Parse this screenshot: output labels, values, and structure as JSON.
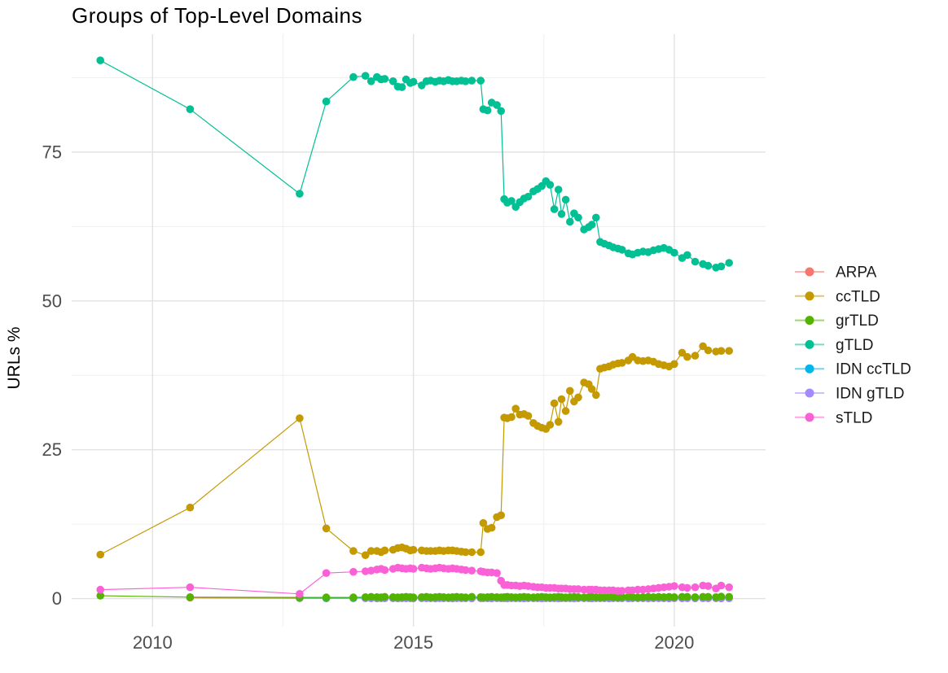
{
  "chart_data": {
    "type": "line",
    "title": "Groups of Top-Level Domains",
    "xlabel": "",
    "ylabel": "URLs %",
    "grid": true,
    "legend_position": "right",
    "x_axis": {
      "domain": [
        2008.45,
        2021.75
      ],
      "ticks": [
        2010,
        2015,
        2020
      ],
      "tick_labels": [
        "2010",
        "2015",
        "2020"
      ],
      "minor_ticks": [
        2012.5,
        2017.5
      ]
    },
    "y_axis": {
      "domain": [
        -4.7,
        94.8
      ],
      "ticks": [
        0,
        25,
        50,
        75
      ],
      "tick_labels": [
        "0",
        "25",
        "50",
        "75"
      ],
      "minor_ticks": [
        12.5,
        37.5,
        62.5,
        87.5
      ]
    },
    "draw_order": [
      "ARPA",
      "IDN ccTLD",
      "IDN gTLD",
      "grTLD",
      "gTLD",
      "ccTLD",
      "sTLD"
    ],
    "series": [
      {
        "name": "ARPA",
        "color": "#F8766D",
        "x": [
          2010.72,
          2012.82,
          2013.33,
          2013.85
        ],
        "y": [
          0.15,
          0.07,
          0.06,
          0.05
        ]
      },
      {
        "name": "ccTLD",
        "color": "#C49A00",
        "x": [
          2009.0,
          2010.72,
          2012.82,
          2013.33,
          2013.85,
          2014.08,
          2014.19,
          2014.3,
          2014.38,
          2014.45,
          2014.61,
          2014.7,
          2014.78,
          2014.86,
          2014.94,
          2015.0,
          2015.16,
          2015.25,
          2015.33,
          2015.42,
          2015.5,
          2015.58,
          2015.67,
          2015.75,
          2015.83,
          2015.92,
          2016.0,
          2016.12,
          2016.29,
          2016.34,
          2016.42,
          2016.5,
          2016.6,
          2016.68,
          2016.74,
          2016.8,
          2016.88,
          2016.96,
          2017.04,
          2017.12,
          2017.2,
          2017.3,
          2017.38,
          2017.46,
          2017.54,
          2017.62,
          2017.7,
          2017.78,
          2017.84,
          2017.92,
          2018.0,
          2018.08,
          2018.16,
          2018.27,
          2018.36,
          2018.42,
          2018.5,
          2018.58,
          2018.66,
          2018.75,
          2018.83,
          2018.92,
          2019.0,
          2019.12,
          2019.2,
          2019.3,
          2019.4,
          2019.5,
          2019.6,
          2019.7,
          2019.8,
          2019.9,
          2020.0,
          2020.15,
          2020.25,
          2020.4,
          2020.55,
          2020.65,
          2020.8,
          2020.9,
          2021.05
        ],
        "y": [
          7.4,
          15.3,
          30.3,
          11.8,
          8.0,
          7.3,
          8.0,
          8.0,
          7.8,
          8.1,
          8.2,
          8.5,
          8.6,
          8.4,
          8.1,
          8.2,
          8.1,
          8.0,
          8.0,
          8.0,
          8.1,
          8.0,
          8.1,
          8.1,
          8.0,
          7.9,
          7.8,
          7.8,
          7.8,
          12.7,
          11.7,
          11.9,
          13.7,
          14.0,
          30.4,
          30.3,
          30.5,
          31.9,
          30.9,
          31.0,
          30.7,
          29.5,
          29.0,
          28.7,
          28.5,
          29.2,
          32.8,
          29.7,
          33.5,
          31.5,
          34.9,
          33.1,
          33.8,
          36.3,
          36.0,
          35.2,
          34.2,
          38.6,
          38.8,
          39.0,
          39.3,
          39.5,
          39.6,
          40.0,
          40.6,
          40.0,
          39.9,
          40.0,
          39.8,
          39.4,
          39.2,
          39.0,
          39.4,
          41.3,
          40.6,
          40.8,
          42.4,
          41.7,
          41.5,
          41.6,
          41.6
        ]
      },
      {
        "name": "grTLD",
        "color": "#53B400",
        "x": [
          2009.0,
          2010.72,
          2012.82,
          2013.33,
          2013.85,
          2014.08,
          2014.19,
          2014.3,
          2014.38,
          2014.45,
          2014.61,
          2014.7,
          2014.78,
          2014.86,
          2014.94,
          2015.0,
          2015.16,
          2015.25,
          2015.33,
          2015.42,
          2015.5,
          2015.58,
          2015.67,
          2015.75,
          2015.83,
          2015.92,
          2016.0,
          2016.12,
          2016.29,
          2016.34,
          2016.42,
          2016.5,
          2016.6,
          2016.68,
          2016.74,
          2016.8,
          2016.88,
          2016.96,
          2017.04,
          2017.12,
          2017.2,
          2017.3,
          2017.38,
          2017.46,
          2017.54,
          2017.62,
          2017.7,
          2017.78,
          2017.84,
          2017.92,
          2018.0,
          2018.08,
          2018.16,
          2018.27,
          2018.36,
          2018.42,
          2018.5,
          2018.58,
          2018.66,
          2018.75,
          2018.83,
          2018.92,
          2019.0,
          2019.12,
          2019.2,
          2019.3,
          2019.4,
          2019.5,
          2019.6,
          2019.7,
          2019.8,
          2019.9,
          2020.0,
          2020.15,
          2020.25,
          2020.4,
          2020.55,
          2020.65,
          2020.8,
          2020.9,
          2021.05
        ],
        "y": [
          0.5,
          0.25,
          0.2,
          0.2,
          0.2,
          0.25,
          0.3,
          0.25,
          0.2,
          0.3,
          0.25,
          0.2,
          0.25,
          0.3,
          0.25,
          0.2,
          0.25,
          0.3,
          0.2,
          0.25,
          0.3,
          0.25,
          0.2,
          0.25,
          0.3,
          0.25,
          0.2,
          0.3,
          0.25,
          0.2,
          0.25,
          0.3,
          0.25,
          0.2,
          0.25,
          0.3,
          0.25,
          0.2,
          0.25,
          0.3,
          0.25,
          0.2,
          0.25,
          0.3,
          0.25,
          0.2,
          0.25,
          0.3,
          0.25,
          0.2,
          0.25,
          0.3,
          0.25,
          0.2,
          0.25,
          0.3,
          0.25,
          0.2,
          0.25,
          0.3,
          0.25,
          0.2,
          0.25,
          0.3,
          0.25,
          0.2,
          0.25,
          0.3,
          0.25,
          0.3,
          0.25,
          0.3,
          0.25,
          0.3,
          0.3,
          0.25,
          0.3,
          0.3,
          0.25,
          0.35,
          0.3
        ]
      },
      {
        "name": "gTLD",
        "color": "#00C094",
        "x": [
          2009.0,
          2010.72,
          2012.82,
          2013.33,
          2013.85,
          2014.08,
          2014.19,
          2014.3,
          2014.38,
          2014.45,
          2014.61,
          2014.7,
          2014.78,
          2014.86,
          2014.94,
          2015.0,
          2015.16,
          2015.25,
          2015.33,
          2015.42,
          2015.5,
          2015.58,
          2015.67,
          2015.75,
          2015.83,
          2015.92,
          2016.0,
          2016.12,
          2016.29,
          2016.34,
          2016.42,
          2016.5,
          2016.6,
          2016.68,
          2016.74,
          2016.8,
          2016.88,
          2016.96,
          2017.04,
          2017.12,
          2017.2,
          2017.3,
          2017.38,
          2017.46,
          2017.54,
          2017.62,
          2017.7,
          2017.78,
          2017.84,
          2017.92,
          2018.0,
          2018.08,
          2018.16,
          2018.27,
          2018.36,
          2018.42,
          2018.5,
          2018.58,
          2018.66,
          2018.75,
          2018.83,
          2018.92,
          2019.0,
          2019.12,
          2019.2,
          2019.3,
          2019.4,
          2019.5,
          2019.6,
          2019.7,
          2019.8,
          2019.9,
          2020.0,
          2020.15,
          2020.25,
          2020.4,
          2020.55,
          2020.65,
          2020.8,
          2020.9,
          2021.05
        ],
        "y": [
          90.4,
          82.2,
          68.0,
          83.5,
          87.6,
          87.8,
          86.9,
          87.6,
          87.2,
          87.3,
          86.9,
          86.0,
          85.9,
          87.2,
          86.6,
          86.8,
          86.2,
          86.9,
          87.0,
          86.8,
          87.0,
          86.9,
          87.1,
          86.9,
          86.9,
          87.0,
          86.9,
          87.0,
          87.0,
          82.2,
          82.0,
          83.3,
          82.9,
          81.9,
          67.1,
          66.5,
          66.8,
          65.8,
          66.6,
          67.2,
          67.5,
          68.4,
          68.8,
          69.3,
          70.1,
          69.5,
          65.4,
          68.7,
          64.6,
          67.0,
          63.3,
          64.7,
          64.0,
          62.0,
          62.4,
          62.8,
          64.0,
          59.9,
          59.6,
          59.3,
          59.0,
          58.8,
          58.6,
          58.0,
          57.8,
          58.1,
          58.3,
          58.2,
          58.5,
          58.7,
          58.9,
          58.6,
          58.1,
          57.2,
          57.7,
          56.6,
          56.2,
          55.9,
          55.6,
          55.8,
          56.4
        ]
      },
      {
        "name": "IDN ccTLD",
        "color": "#00B6EB",
        "x": [
          2012.82,
          2013.33,
          2013.85,
          2014.08,
          2014.19,
          2014.3,
          2014.38,
          2014.45,
          2014.61,
          2014.7,
          2014.78,
          2014.86,
          2014.94,
          2015.0,
          2015.16,
          2015.25,
          2015.33,
          2015.42,
          2015.5,
          2015.58,
          2015.67,
          2015.75,
          2015.83,
          2015.92,
          2016.0,
          2016.12,
          2016.29,
          2016.34,
          2016.42,
          2016.5,
          2016.6,
          2016.68,
          2016.74,
          2016.8,
          2016.88,
          2016.96,
          2017.04,
          2017.12,
          2017.2,
          2017.3,
          2017.38,
          2017.46,
          2017.54,
          2017.62,
          2017.7,
          2017.78,
          2017.84,
          2017.92,
          2018.0,
          2018.08,
          2018.16,
          2018.27,
          2018.36,
          2018.42,
          2018.5,
          2018.58,
          2018.66,
          2018.75,
          2018.83,
          2018.92,
          2019.0,
          2019.12,
          2019.2,
          2019.3,
          2019.4,
          2019.5,
          2019.6,
          2019.7,
          2019.8,
          2019.9,
          2020.0,
          2020.15,
          2020.25,
          2020.4,
          2020.55,
          2020.65,
          2020.8,
          2020.9,
          2021.05
        ],
        "y": [
          0.15,
          0.1,
          0.12,
          0.1,
          0.08,
          0.1,
          0.12,
          0.1,
          0.08,
          0.1,
          0.12,
          0.1,
          0.08,
          0.1,
          0.12,
          0.1,
          0.08,
          0.1,
          0.12,
          0.1,
          0.08,
          0.1,
          0.12,
          0.1,
          0.08,
          0.1,
          0.12,
          0.1,
          0.08,
          0.1,
          0.12,
          0.1,
          0.08,
          0.1,
          0.12,
          0.1,
          0.08,
          0.1,
          0.12,
          0.1,
          0.08,
          0.1,
          0.12,
          0.1,
          0.08,
          0.1,
          0.12,
          0.1,
          0.08,
          0.1,
          0.12,
          0.1,
          0.08,
          0.1,
          0.12,
          0.1,
          0.08,
          0.1,
          0.12,
          0.1,
          0.08,
          0.1,
          0.12,
          0.1,
          0.08,
          0.1,
          0.12,
          0.1,
          0.08,
          0.1,
          0.12,
          0.1,
          0.08,
          0.1,
          0.12,
          0.1,
          0.08,
          0.1,
          0.1
        ]
      },
      {
        "name": "IDN gTLD",
        "color": "#A58AFF",
        "x": [
          2014.08,
          2014.19,
          2014.3,
          2014.38,
          2014.45,
          2014.61,
          2014.7,
          2014.78,
          2014.86,
          2014.94,
          2015.0,
          2015.16,
          2015.25,
          2015.33,
          2015.42,
          2015.5,
          2015.58,
          2015.67,
          2015.75,
          2015.83,
          2015.92,
          2016.0,
          2016.12,
          2016.29,
          2016.34,
          2016.42,
          2016.5,
          2016.6,
          2016.68,
          2016.74,
          2016.8,
          2016.88,
          2016.96,
          2017.04,
          2017.12,
          2017.2,
          2017.3,
          2017.38,
          2017.46,
          2017.54,
          2017.62,
          2017.7,
          2017.78,
          2017.84,
          2017.92,
          2018.0,
          2018.08,
          2018.16,
          2018.27,
          2018.36,
          2018.42,
          2018.5,
          2018.58,
          2018.66,
          2018.75,
          2018.83,
          2018.92,
          2019.0,
          2019.12,
          2019.2,
          2019.3,
          2019.4,
          2019.5,
          2019.6,
          2019.7,
          2019.8,
          2019.9,
          2020.0,
          2020.15,
          2020.25,
          2020.4,
          2020.55,
          2020.65,
          2020.8,
          2020.9,
          2021.05
        ],
        "y": [
          0.05,
          0.06,
          0.04,
          0.05,
          0.06,
          0.05,
          0.04,
          0.05,
          0.06,
          0.05,
          0.04,
          0.05,
          0.06,
          0.05,
          0.04,
          0.05,
          0.06,
          0.05,
          0.04,
          0.05,
          0.06,
          0.05,
          0.04,
          0.05,
          0.06,
          0.05,
          0.04,
          0.05,
          0.06,
          0.05,
          0.04,
          0.05,
          0.06,
          0.05,
          0.04,
          0.05,
          0.06,
          0.05,
          0.04,
          0.05,
          0.06,
          0.05,
          0.04,
          0.05,
          0.06,
          0.05,
          0.04,
          0.05,
          0.06,
          0.05,
          0.04,
          0.05,
          0.06,
          0.05,
          0.04,
          0.05,
          0.06,
          0.05,
          0.04,
          0.05,
          0.06,
          0.05,
          0.04,
          0.05,
          0.06,
          0.05,
          0.04,
          0.05,
          0.06,
          0.05,
          0.04,
          0.05,
          0.06,
          0.05,
          0.04,
          0.05
        ]
      },
      {
        "name": "sTLD",
        "color": "#FB61D7",
        "x": [
          2009.0,
          2010.72,
          2012.82,
          2013.33,
          2013.85,
          2014.08,
          2014.19,
          2014.3,
          2014.38,
          2014.45,
          2014.61,
          2014.7,
          2014.78,
          2014.86,
          2014.94,
          2015.0,
          2015.16,
          2015.25,
          2015.33,
          2015.42,
          2015.5,
          2015.58,
          2015.67,
          2015.75,
          2015.83,
          2015.92,
          2016.0,
          2016.12,
          2016.29,
          2016.34,
          2016.42,
          2016.5,
          2016.6,
          2016.68,
          2016.74,
          2016.8,
          2016.88,
          2016.96,
          2017.04,
          2017.12,
          2017.2,
          2017.3,
          2017.38,
          2017.46,
          2017.54,
          2017.62,
          2017.7,
          2017.78,
          2017.84,
          2017.92,
          2018.0,
          2018.08,
          2018.16,
          2018.27,
          2018.36,
          2018.42,
          2018.5,
          2018.58,
          2018.66,
          2018.75,
          2018.83,
          2018.92,
          2019.0,
          2019.12,
          2019.2,
          2019.3,
          2019.4,
          2019.5,
          2019.6,
          2019.7,
          2019.8,
          2019.9,
          2020.0,
          2020.15,
          2020.25,
          2020.4,
          2020.55,
          2020.65,
          2020.8,
          2020.9,
          2021.05
        ],
        "y": [
          1.5,
          1.9,
          0.8,
          4.3,
          4.5,
          4.6,
          4.7,
          4.9,
          5.0,
          4.8,
          5.0,
          5.2,
          5.1,
          5.0,
          5.1,
          5.0,
          5.2,
          5.1,
          5.0,
          5.1,
          5.2,
          5.1,
          5.0,
          5.1,
          5.0,
          4.9,
          4.8,
          4.7,
          4.6,
          4.5,
          4.4,
          4.4,
          4.3,
          3.0,
          2.3,
          2.3,
          2.2,
          2.2,
          2.1,
          2.2,
          2.1,
          2.0,
          1.9,
          1.9,
          1.8,
          1.8,
          1.8,
          1.7,
          1.7,
          1.7,
          1.6,
          1.6,
          1.6,
          1.5,
          1.5,
          1.5,
          1.5,
          1.4,
          1.4,
          1.4,
          1.4,
          1.3,
          1.3,
          1.4,
          1.4,
          1.5,
          1.5,
          1.6,
          1.7,
          1.8,
          1.9,
          2.0,
          2.1,
          1.9,
          1.8,
          1.9,
          2.2,
          2.1,
          1.7,
          2.2,
          1.9
        ]
      }
    ],
    "legend": {
      "entries": [
        "ARPA",
        "ccTLD",
        "grTLD",
        "gTLD",
        "IDN ccTLD",
        "IDN gTLD",
        "sTLD"
      ]
    }
  },
  "style": {
    "grid_major_color": "#e2e2e2",
    "grid_minor_color": "#efefef",
    "tick_text_color": "#4d4d4d",
    "background": "#ffffff"
  }
}
